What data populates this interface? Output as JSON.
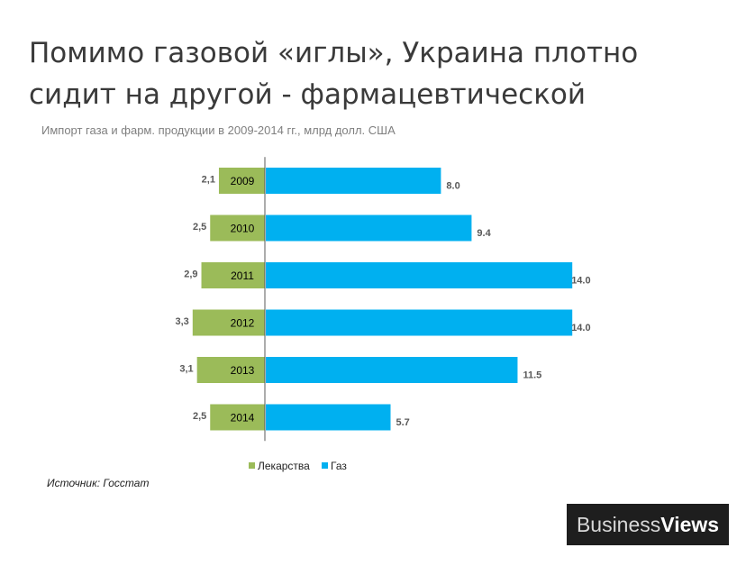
{
  "header": {
    "title_line1": "Помимо газовой «иглы», Украина плотно",
    "title_line2": "сидит на другой - фармацевтической",
    "subtitle": "Импорт газа и фарм. продукции в 2009-2014 гг., млрд долл. США"
  },
  "footer": {
    "source": "Источник: Госстат"
  },
  "logo": {
    "part1": "Business",
    "part2": "Views"
  },
  "colors": {
    "pharma": "#9bbb59",
    "gas": "#00b0f0",
    "axis": "#595959",
    "label": "#595959"
  },
  "chart_data": {
    "type": "bar",
    "orientation": "horizontal",
    "layout": "diverging",
    "categories": [
      "2009",
      "2010",
      "2011",
      "2012",
      "2013",
      "2014"
    ],
    "series": [
      {
        "name": "Лекарства",
        "values": [
          2.1,
          2.5,
          2.9,
          3.3,
          3.1,
          2.5
        ],
        "labels": [
          "2,1",
          "2,5",
          "2,9",
          "3,3",
          "3,1",
          "2,5"
        ],
        "direction": "left"
      },
      {
        "name": "Газ",
        "values": [
          8.0,
          9.4,
          14.0,
          14.0,
          11.5,
          5.7
        ],
        "labels": [
          "8.0",
          "9.4",
          "14.0",
          "14.0",
          "11.5",
          "5.7"
        ],
        "direction": "right"
      }
    ],
    "legend_position": "bottom",
    "grid": false
  }
}
